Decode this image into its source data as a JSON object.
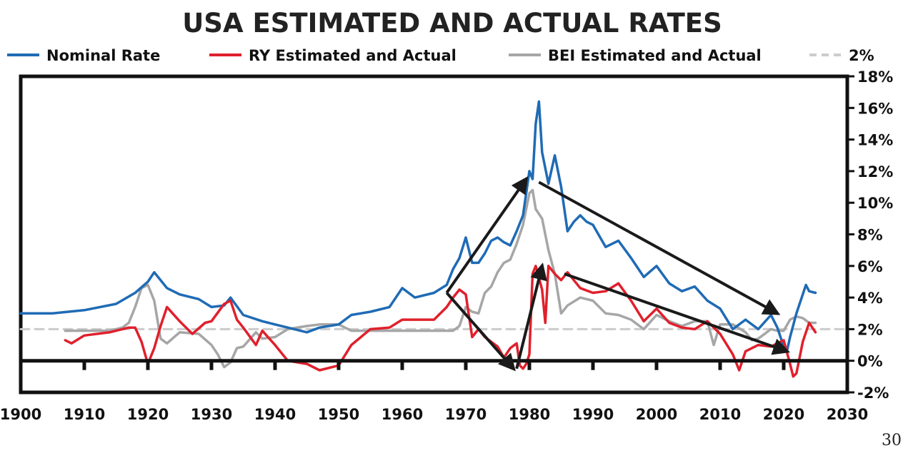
{
  "page_number": "30",
  "chart_data": {
    "type": "line",
    "title": "USA ESTIMATED AND ACTUAL RATES",
    "xlabel": "",
    "ylabel": "",
    "xlim": [
      1900,
      2030
    ],
    "ylim": [
      -2,
      18
    ],
    "x_ticks": [
      "1900",
      "1910",
      "1920",
      "1930",
      "1940",
      "1950",
      "1960",
      "1970",
      "1980",
      "1990",
      "2000",
      "2010",
      "2020",
      "2030"
    ],
    "y_ticks": [
      "18%",
      "16%",
      "14%",
      "12%",
      "10%",
      "8%",
      "6%",
      "4%",
      "2%",
      "0%",
      "-2%"
    ],
    "y_axis_side": "right",
    "legend_position": "top",
    "grid": false,
    "series": [
      {
        "name": "Nominal Rate",
        "color": "#1f6bb5",
        "x": [
          1900,
          1905,
          1910,
          1915,
          1918,
          1920,
          1921,
          1923,
          1925,
          1928,
          1930,
          1932,
          1933,
          1935,
          1938,
          1940,
          1942,
          1945,
          1947,
          1950,
          1952,
          1955,
          1958,
          1960,
          1962,
          1965,
          1967,
          1968,
          1969,
          1970,
          1971,
          1972,
          1973,
          1974,
          1975,
          1976,
          1977,
          1978,
          1979,
          1980,
          1980.5,
          1981,
          1981.5,
          1982,
          1983,
          1984,
          1985,
          1986,
          1987,
          1988,
          1989,
          1990,
          1992,
          1994,
          1996,
          1998,
          2000,
          2002,
          2004,
          2006,
          2008,
          2010,
          2012,
          2014,
          2016,
          2018,
          2019,
          2020,
          2020.5,
          2021,
          2022,
          2023,
          2023.5,
          2024,
          2025
        ],
        "values": [
          3.0,
          3.0,
          3.2,
          3.6,
          4.3,
          5.0,
          5.6,
          4.6,
          4.2,
          3.9,
          3.4,
          3.5,
          4.0,
          2.9,
          2.5,
          2.3,
          2.1,
          1.8,
          2.1,
          2.3,
          2.9,
          3.1,
          3.4,
          4.6,
          4.0,
          4.3,
          4.8,
          5.8,
          6.5,
          7.8,
          6.2,
          6.2,
          6.8,
          7.6,
          7.8,
          7.5,
          7.3,
          8.2,
          9.2,
          12.0,
          11.5,
          15.0,
          16.4,
          13.2,
          11.2,
          13.0,
          11.0,
          8.2,
          8.8,
          9.2,
          8.8,
          8.6,
          7.2,
          7.6,
          6.5,
          5.3,
          6.0,
          4.9,
          4.4,
          4.7,
          3.8,
          3.3,
          2.0,
          2.6,
          2.0,
          2.9,
          2.1,
          0.9,
          0.6,
          1.5,
          3.0,
          4.2,
          4.8,
          4.4,
          4.3
        ]
      },
      {
        "name": "RY Estimated and Actual",
        "color": "#e0202c",
        "x": [
          1907,
          1908,
          1910,
          1914,
          1917,
          1918,
          1919,
          1920,
          1921,
          1922,
          1923,
          1925,
          1927,
          1929,
          1930,
          1932,
          1933,
          1934,
          1935,
          1937,
          1938,
          1940,
          1942,
          1945,
          1947,
          1950,
          1952,
          1955,
          1958,
          1960,
          1963,
          1965,
          1967,
          1968,
          1969,
          1970,
          1971,
          1972,
          1973,
          1975,
          1976,
          1977,
          1978,
          1978.5,
          1979,
          1979.5,
          1980,
          1980.5,
          1981,
          1982,
          1982.5,
          1983,
          1984,
          1985,
          1986,
          1988,
          1990,
          1992,
          1994,
          1996,
          1998,
          2000,
          2002,
          2004,
          2006,
          2008,
          2010,
          2012,
          2013,
          2014,
          2016,
          2018,
          2019,
          2020,
          2021,
          2021.5,
          2022,
          2023,
          2024,
          2025
        ],
        "values": [
          1.3,
          1.1,
          1.6,
          1.8,
          2.1,
          2.1,
          1.2,
          -0.2,
          0.8,
          2.2,
          3.4,
          2.5,
          1.7,
          2.4,
          2.5,
          3.6,
          3.8,
          2.6,
          2.1,
          1.0,
          1.9,
          1.0,
          0.0,
          -0.2,
          -0.6,
          -0.3,
          1.0,
          2.0,
          2.1,
          2.6,
          2.6,
          2.6,
          3.4,
          4.0,
          4.5,
          4.2,
          1.5,
          2.0,
          1.5,
          0.9,
          0.2,
          0.8,
          1.1,
          -0.3,
          -0.5,
          -0.2,
          0.4,
          5.5,
          6.0,
          4.5,
          2.4,
          6.0,
          5.5,
          5.1,
          5.6,
          4.6,
          4.3,
          4.4,
          4.9,
          3.8,
          2.5,
          3.3,
          2.4,
          2.1,
          2.0,
          2.5,
          1.7,
          0.4,
          -0.6,
          0.6,
          1.0,
          0.9,
          1.1,
          1.3,
          -0.2,
          -1.0,
          -0.8,
          1.2,
          2.4,
          1.8
        ]
      },
      {
        "name": "BEI Estimated and Actual",
        "color": "#a6a6a6",
        "x": [
          1907,
          1910,
          1914,
          1916,
          1917,
          1918,
          1919,
          1920,
          1921,
          1922,
          1923,
          1925,
          1928,
          1930,
          1931,
          1932,
          1933,
          1934,
          1935,
          1937,
          1938,
          1940,
          1942,
          1945,
          1947,
          1950,
          1952,
          1955,
          1958,
          1960,
          1963,
          1965,
          1967,
          1968,
          1969,
          1970,
          1971,
          1972,
          1973,
          1974,
          1975,
          1976,
          1977,
          1978,
          1979,
          1980,
          1980.5,
          1981,
          1982,
          1983,
          1984,
          1985,
          1986,
          1988,
          1990,
          1992,
          1994,
          1996,
          1998,
          2000,
          2002,
          2004,
          2006,
          2008,
          2009,
          2010,
          2012,
          2014,
          2015,
          2016,
          2018,
          2019,
          2020,
          2021,
          2022,
          2023,
          2024,
          2025
        ],
        "values": [
          1.9,
          1.9,
          1.9,
          2.1,
          2.4,
          3.4,
          4.6,
          4.8,
          3.8,
          1.4,
          1.1,
          1.8,
          1.7,
          1.0,
          0.4,
          -0.4,
          -0.1,
          0.8,
          0.9,
          1.8,
          1.4,
          1.5,
          2.0,
          2.2,
          2.3,
          2.3,
          1.9,
          1.9,
          1.9,
          1.9,
          1.9,
          1.9,
          1.9,
          1.9,
          2.2,
          3.4,
          3.1,
          3.0,
          4.3,
          4.7,
          5.6,
          6.2,
          6.4,
          7.4,
          8.6,
          10.6,
          10.8,
          9.6,
          9.0,
          7.0,
          5.5,
          3.0,
          3.5,
          4.0,
          3.8,
          3.0,
          2.9,
          2.6,
          2.0,
          2.9,
          2.5,
          2.2,
          2.5,
          2.5,
          1.0,
          2.3,
          2.3,
          1.8,
          1.3,
          1.4,
          2.0,
          1.9,
          1.9,
          2.6,
          2.8,
          2.7,
          2.4,
          2.4
        ]
      },
      {
        "name": "2%",
        "color": "#cccccc",
        "dashed": true,
        "x": [
          1900,
          2030
        ],
        "values": [
          2,
          2
        ]
      }
    ],
    "arrows": [
      {
        "from": [
          1967,
          4.3
        ],
        "to": [
          1979.5,
          11.5
        ]
      },
      {
        "from": [
          1967,
          4.3
        ],
        "to": [
          1977.5,
          -0.5
        ]
      },
      {
        "from": [
          1978,
          -0.5
        ],
        "to": [
          1982,
          6.0
        ]
      },
      {
        "from": [
          1981.5,
          11.3
        ],
        "to": [
          2019,
          3.0
        ]
      },
      {
        "from": [
          1985.5,
          5.5
        ],
        "to": [
          2020.5,
          0.6
        ]
      }
    ]
  }
}
